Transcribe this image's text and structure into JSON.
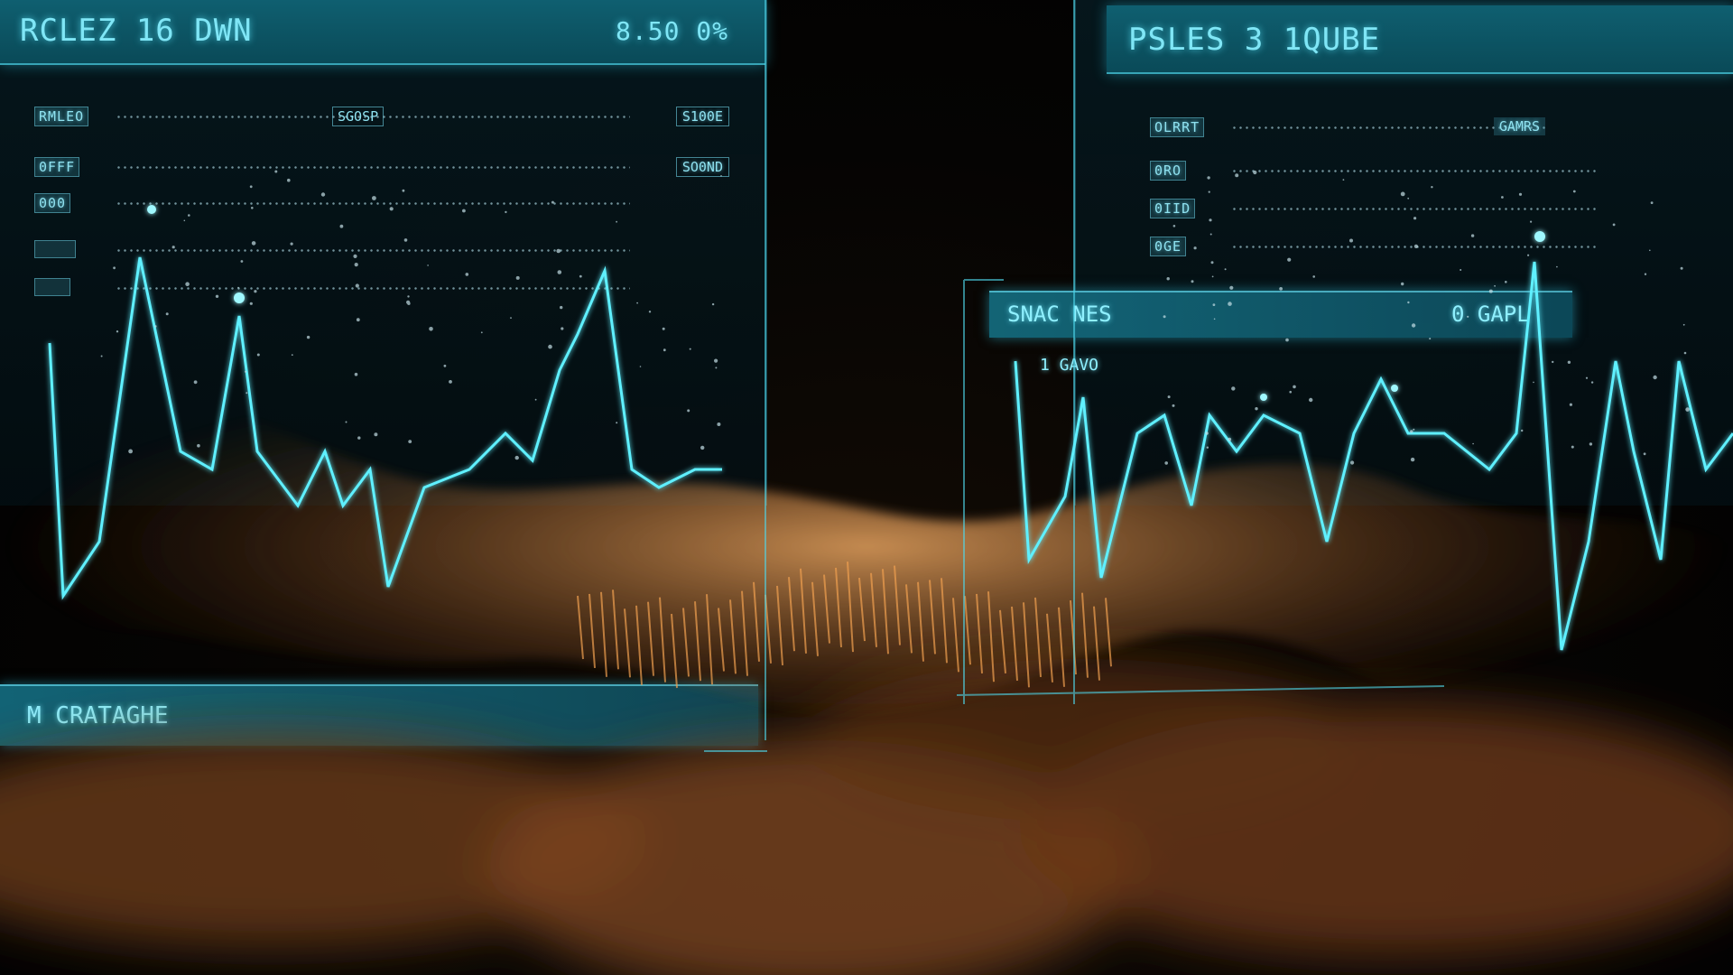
{
  "left_panel": {
    "title": "RCLEZ 16 DWN",
    "header_value": "8.50 0%",
    "rows": [
      {
        "label": "RMLEO",
        "mid": "SGOSP",
        "value": "S100E"
      },
      {
        "label": "0FFF",
        "mid": "",
        "value": "SO0ND"
      },
      {
        "label": "000",
        "mid": "",
        "value": ""
      },
      {
        "label": "",
        "mid": "",
        "value": ""
      },
      {
        "label": "",
        "mid": "",
        "value": ""
      }
    ],
    "footer_label": "M CRATAGHE"
  },
  "right_panel": {
    "title": "PSLES 3 1QUBE",
    "rows": [
      {
        "label": "OLRRT",
        "mid": "",
        "value": "GAMRS"
      },
      {
        "label": "0RO",
        "mid": "",
        "value": ""
      },
      {
        "label": "0IID",
        "mid": "",
        "value": ""
      },
      {
        "label": "0GE",
        "mid": "",
        "value": ""
      }
    ]
  },
  "overlay": {
    "label": "SNAC NES",
    "value": "0 GAPL",
    "sub_label": "1 GAVO"
  },
  "colors": {
    "panel_header": "#0f5f70",
    "trace_cyan": "#5ff0ff",
    "terrain_orange": "#e88a3a"
  }
}
